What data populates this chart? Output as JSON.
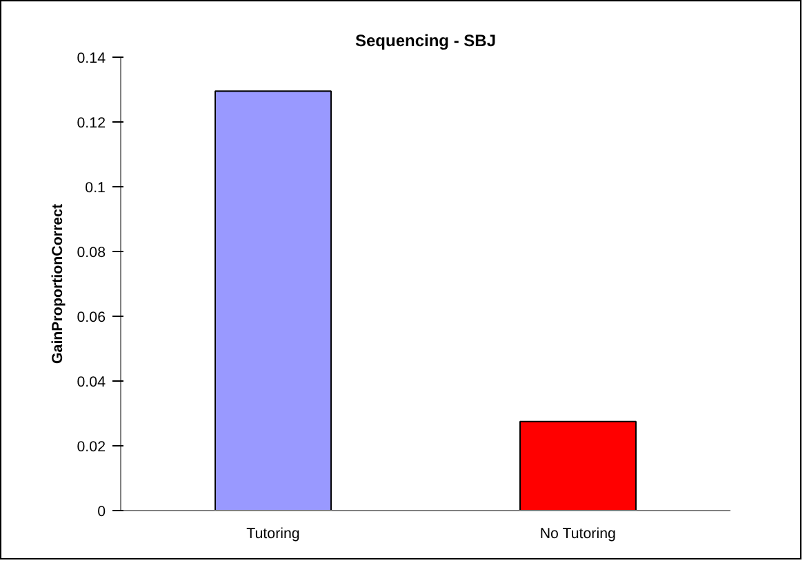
{
  "chart_data": {
    "type": "bar",
    "title": "Sequencing - SBJ",
    "ylabel": "GainProportionCorrect",
    "categories": [
      "Tutoring",
      "No Tutoring"
    ],
    "values": [
      0.1295,
      0.0275
    ],
    "colors": [
      "#9999ff",
      "#ff0000"
    ],
    "ylim": [
      0,
      0.14
    ],
    "yticks": [
      0,
      0.02,
      0.04,
      0.06,
      0.08,
      0.1,
      0.12,
      0.14
    ],
    "grid": false
  }
}
